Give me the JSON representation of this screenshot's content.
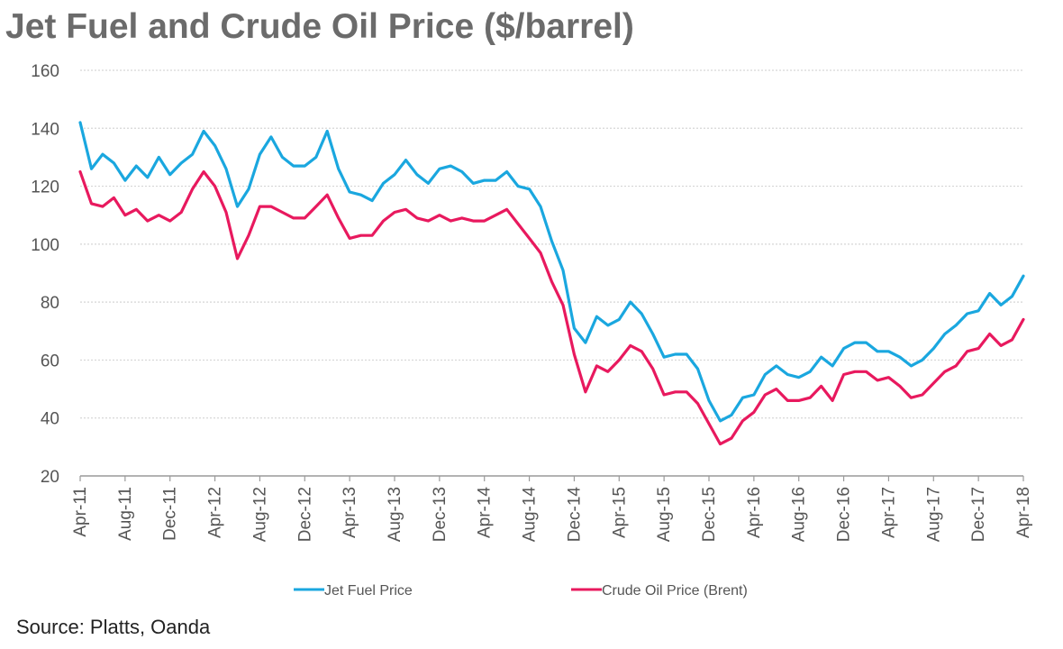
{
  "title": "Jet Fuel and Crude Oil Price ($/barrel)",
  "source": "Source: Platts, Oanda",
  "colors": {
    "jet": "#1aa7df",
    "crude": "#e8195e",
    "grid": "#d6d6d6",
    "axis": "#9a9a9a"
  },
  "chart_data": {
    "type": "line",
    "title": "Jet Fuel and Crude Oil Price ($/barrel)",
    "xlabel": "",
    "ylabel": "",
    "ylim": [
      20,
      160
    ],
    "yticks": [
      20,
      40,
      60,
      80,
      100,
      120,
      140,
      160
    ],
    "grid": "horizontal dotted",
    "legend_position": "bottom",
    "x_range": [
      "2011-04",
      "2018-04"
    ],
    "x_tick_labels": [
      "Apr-11",
      "Aug-11",
      "Dec-11",
      "Apr-12",
      "Aug-12",
      "Dec-12",
      "Apr-13",
      "Aug-13",
      "Dec-13",
      "Apr-14",
      "Aug-14",
      "Dec-14",
      "Apr-15",
      "Aug-15",
      "Dec-15",
      "Apr-16",
      "Aug-16",
      "Dec-16",
      "Apr-17",
      "Aug-17",
      "Dec-17",
      "Apr-18"
    ],
    "series": [
      {
        "name": "Jet Fuel Price",
        "color": "#1aa7df",
        "points": [
          [
            "2011-04",
            142
          ],
          [
            "2011-05",
            126
          ],
          [
            "2011-06",
            131
          ],
          [
            "2011-07",
            128
          ],
          [
            "2011-08",
            122
          ],
          [
            "2011-09",
            127
          ],
          [
            "2011-10",
            123
          ],
          [
            "2011-11",
            130
          ],
          [
            "2011-12",
            124
          ],
          [
            "2012-01",
            128
          ],
          [
            "2012-02",
            131
          ],
          [
            "2012-03",
            139
          ],
          [
            "2012-04",
            134
          ],
          [
            "2012-05",
            126
          ],
          [
            "2012-06",
            113
          ],
          [
            "2012-07",
            119
          ],
          [
            "2012-08",
            131
          ],
          [
            "2012-09",
            137
          ],
          [
            "2012-10",
            130
          ],
          [
            "2012-11",
            127
          ],
          [
            "2012-12",
            127
          ],
          [
            "2013-01",
            130
          ],
          [
            "2013-02",
            139
          ],
          [
            "2013-03",
            126
          ],
          [
            "2013-04",
            118
          ],
          [
            "2013-05",
            117
          ],
          [
            "2013-06",
            115
          ],
          [
            "2013-07",
            121
          ],
          [
            "2013-08",
            124
          ],
          [
            "2013-09",
            129
          ],
          [
            "2013-10",
            124
          ],
          [
            "2013-11",
            121
          ],
          [
            "2013-12",
            126
          ],
          [
            "2014-01",
            127
          ],
          [
            "2014-02",
            125
          ],
          [
            "2014-03",
            121
          ],
          [
            "2014-04",
            122
          ],
          [
            "2014-05",
            122
          ],
          [
            "2014-06",
            125
          ],
          [
            "2014-07",
            120
          ],
          [
            "2014-08",
            119
          ],
          [
            "2014-09",
            113
          ],
          [
            "2014-10",
            101
          ],
          [
            "2014-11",
            91
          ],
          [
            "2014-12",
            71
          ],
          [
            "2015-01",
            66
          ],
          [
            "2015-02",
            75
          ],
          [
            "2015-03",
            72
          ],
          [
            "2015-04",
            74
          ],
          [
            "2015-05",
            80
          ],
          [
            "2015-06",
            76
          ],
          [
            "2015-07",
            69
          ],
          [
            "2015-08",
            61
          ],
          [
            "2015-09",
            62
          ],
          [
            "2015-10",
            62
          ],
          [
            "2015-11",
            57
          ],
          [
            "2015-12",
            46
          ],
          [
            "2016-01",
            39
          ],
          [
            "2016-02",
            41
          ],
          [
            "2016-03",
            47
          ],
          [
            "2016-04",
            48
          ],
          [
            "2016-05",
            55
          ],
          [
            "2016-06",
            58
          ],
          [
            "2016-07",
            55
          ],
          [
            "2016-08",
            54
          ],
          [
            "2016-09",
            56
          ],
          [
            "2016-10",
            61
          ],
          [
            "2016-11",
            58
          ],
          [
            "2016-12",
            64
          ],
          [
            "2017-01",
            66
          ],
          [
            "2017-02",
            66
          ],
          [
            "2017-03",
            63
          ],
          [
            "2017-04",
            63
          ],
          [
            "2017-05",
            61
          ],
          [
            "2017-06",
            58
          ],
          [
            "2017-07",
            60
          ],
          [
            "2017-08",
            64
          ],
          [
            "2017-09",
            69
          ],
          [
            "2017-10",
            72
          ],
          [
            "2017-11",
            76
          ],
          [
            "2017-12",
            77
          ],
          [
            "2018-01",
            83
          ],
          [
            "2018-02",
            79
          ],
          [
            "2018-03",
            82
          ],
          [
            "2018-04",
            89
          ]
        ]
      },
      {
        "name": "Crude Oil Price (Brent)",
        "color": "#e8195e",
        "points": [
          [
            "2011-04",
            125
          ],
          [
            "2011-05",
            114
          ],
          [
            "2011-06",
            113
          ],
          [
            "2011-07",
            116
          ],
          [
            "2011-08",
            110
          ],
          [
            "2011-09",
            112
          ],
          [
            "2011-10",
            108
          ],
          [
            "2011-11",
            110
          ],
          [
            "2011-12",
            108
          ],
          [
            "2012-01",
            111
          ],
          [
            "2012-02",
            119
          ],
          [
            "2012-03",
            125
          ],
          [
            "2012-04",
            120
          ],
          [
            "2012-05",
            111
          ],
          [
            "2012-06",
            95
          ],
          [
            "2012-07",
            103
          ],
          [
            "2012-08",
            113
          ],
          [
            "2012-09",
            113
          ],
          [
            "2012-10",
            111
          ],
          [
            "2012-11",
            109
          ],
          [
            "2012-12",
            109
          ],
          [
            "2013-01",
            113
          ],
          [
            "2013-02",
            117
          ],
          [
            "2013-03",
            109
          ],
          [
            "2013-04",
            102
          ],
          [
            "2013-05",
            103
          ],
          [
            "2013-06",
            103
          ],
          [
            "2013-07",
            108
          ],
          [
            "2013-08",
            111
          ],
          [
            "2013-09",
            112
          ],
          [
            "2013-10",
            109
          ],
          [
            "2013-11",
            108
          ],
          [
            "2013-12",
            110
          ],
          [
            "2014-01",
            108
          ],
          [
            "2014-02",
            109
          ],
          [
            "2014-03",
            108
          ],
          [
            "2014-04",
            108
          ],
          [
            "2014-05",
            110
          ],
          [
            "2014-06",
            112
          ],
          [
            "2014-07",
            107
          ],
          [
            "2014-08",
            102
          ],
          [
            "2014-09",
            97
          ],
          [
            "2014-10",
            87
          ],
          [
            "2014-11",
            79
          ],
          [
            "2014-12",
            62
          ],
          [
            "2015-01",
            49
          ],
          [
            "2015-02",
            58
          ],
          [
            "2015-03",
            56
          ],
          [
            "2015-04",
            60
          ],
          [
            "2015-05",
            65
          ],
          [
            "2015-06",
            63
          ],
          [
            "2015-07",
            57
          ],
          [
            "2015-08",
            48
          ],
          [
            "2015-09",
            49
          ],
          [
            "2015-10",
            49
          ],
          [
            "2015-11",
            45
          ],
          [
            "2015-12",
            38
          ],
          [
            "2016-01",
            31
          ],
          [
            "2016-02",
            33
          ],
          [
            "2016-03",
            39
          ],
          [
            "2016-04",
            42
          ],
          [
            "2016-05",
            48
          ],
          [
            "2016-06",
            50
          ],
          [
            "2016-07",
            46
          ],
          [
            "2016-08",
            46
          ],
          [
            "2016-09",
            47
          ],
          [
            "2016-10",
            51
          ],
          [
            "2016-11",
            46
          ],
          [
            "2016-12",
            55
          ],
          [
            "2017-01",
            56
          ],
          [
            "2017-02",
            56
          ],
          [
            "2017-03",
            53
          ],
          [
            "2017-04",
            54
          ],
          [
            "2017-05",
            51
          ],
          [
            "2017-06",
            47
          ],
          [
            "2017-07",
            48
          ],
          [
            "2017-08",
            52
          ],
          [
            "2017-09",
            56
          ],
          [
            "2017-10",
            58
          ],
          [
            "2017-11",
            63
          ],
          [
            "2017-12",
            64
          ],
          [
            "2018-01",
            69
          ],
          [
            "2018-02",
            65
          ],
          [
            "2018-03",
            67
          ],
          [
            "2018-04",
            74
          ]
        ]
      }
    ]
  }
}
